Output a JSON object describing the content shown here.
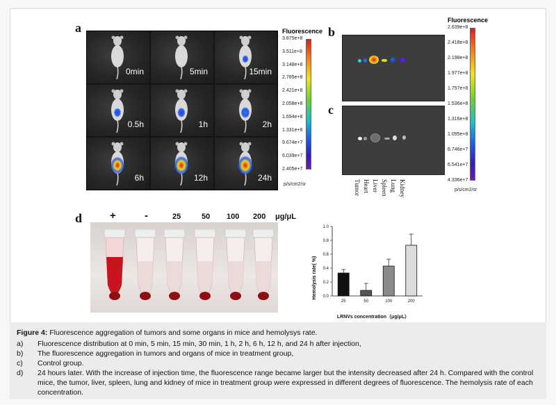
{
  "panel_labels": {
    "a": "a",
    "b": "b",
    "c": "c",
    "d": "d"
  },
  "panel_a": {
    "time_labels": [
      "0min",
      "5min",
      "15min",
      "0.5h",
      "1h",
      "2h",
      "6h",
      "12h",
      "24h"
    ],
    "colorbar": {
      "title": "Fluorescence",
      "ticks": [
        "3.875e+8",
        "3.511e+8",
        "3.148e+8",
        "2.785e+8",
        "2.421e+8",
        "2.058e+8",
        "1.694e+8",
        "1.331e+8",
        "9.674e+7",
        "6.039e+7",
        "2.405e+7"
      ],
      "unit": "p/s/cm2/sr"
    }
  },
  "panel_bc": {
    "colorbar": {
      "title": "Fluorescence",
      "ticks": [
        "2.639e+8",
        "2.418e+8",
        "2.198e+8",
        "1.977e+8",
        "1.757e+8",
        "1.536e+8",
        "1.316e+8",
        "1.095e+8",
        "8.746e+7",
        "6.541e+7",
        "4.336e+7"
      ],
      "unit": "p/s/cm2/sr"
    },
    "organs": [
      "Tumor",
      "Heart",
      "Liver",
      "Spleen",
      "Lung",
      "Kidney"
    ]
  },
  "panel_d": {
    "tube_labels": [
      "+",
      "-",
      "25",
      "50",
      "100",
      "200",
      "μg/μL"
    ]
  },
  "chart_data": {
    "type": "bar",
    "categories": [
      "25",
      "50",
      "100",
      "200"
    ],
    "values": [
      0.33,
      0.08,
      0.43,
      0.73
    ],
    "errors": [
      0.05,
      0.1,
      0.1,
      0.16
    ],
    "colors": [
      "#111111",
      "#555555",
      "#8a8a8a",
      "#dcdcdc"
    ],
    "ylabel": "Hemolysis rate( %)",
    "xlabel": "LRNVs concentration（μg/μL）",
    "yticks": [
      "0.0",
      "0.2",
      "0.4",
      "0.6",
      "0.8",
      "1.0"
    ],
    "ylim": [
      0,
      1.0
    ]
  },
  "caption": {
    "title_bold": "Figure 4:",
    "title_text": " Fluorescence aggregation of tumors and some organs in mice and hemolysys rate.",
    "items": [
      {
        "letter": "a)",
        "text": "Fluorescence distribution at 0 min, 5 min, 15 min, 30 min, 1 h, 2 h, 6 h, 12 h, and 24 h after injection,"
      },
      {
        "letter": "b)",
        "text": "The fluorescence aggregation in tumors and organs of mice in treatment group,"
      },
      {
        "letter": "c)",
        "text": "Control group."
      },
      {
        "letter": "d)",
        "text": "24 hours later. With the increase of injection time, the fluorescence range became larger but the intensity decreased after 24 h. Compared with the control mice, the tumor, liver, spleen, lung and kidney of mice in treatment group were expressed in different degrees of fluorescence. The hemolysis rate of each concentration."
      }
    ]
  }
}
